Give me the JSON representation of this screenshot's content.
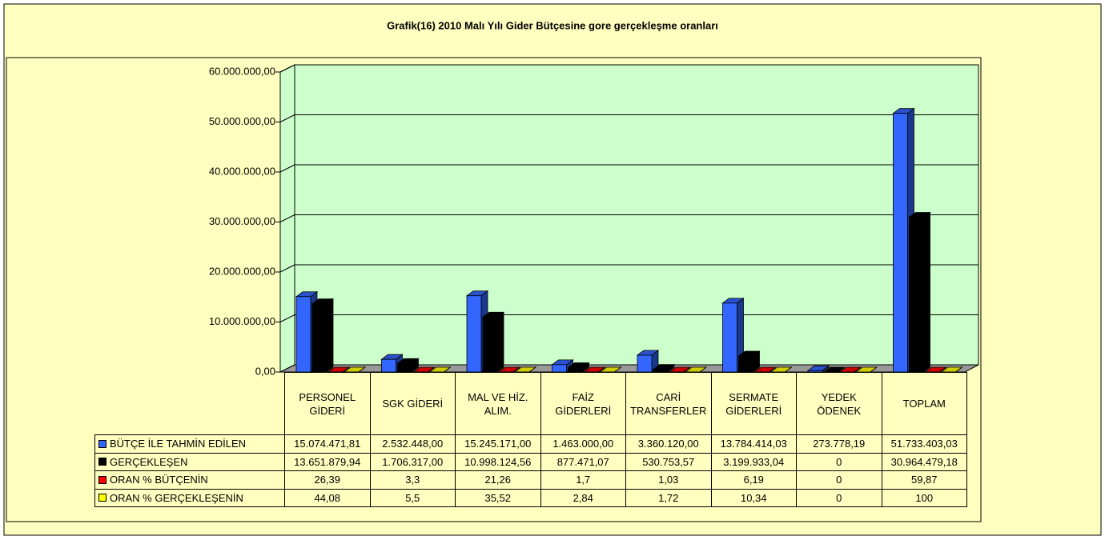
{
  "chart_data": {
    "type": "bar3d",
    "title": "Grafik(16) 2010 Malı Yılı Gider Bütçesine gore gerçekleşme oranları",
    "categories": [
      "PERSONEL GİDERİ",
      "SGK GİDERİ",
      "MAL VE HİZ. ALIM.",
      "FAİZ GİDERLERİ",
      "CARİ TRANSFERLER",
      "SERMATE GİDERLERİ",
      "YEDEK ÖDENEK",
      "TOPLAM"
    ],
    "series": [
      {
        "name": "BÜTÇE İLE TAHMİN EDİLEN",
        "color": "#3366ff",
        "values": [
          15074471.81,
          2532448.0,
          15245171.0,
          1463000.0,
          3360120.0,
          13784414.03,
          273778.19,
          51733403.03
        ],
        "value_labels": [
          "15.074.471,81",
          "2.532.448,00",
          "15.245.171,00",
          "1.463.000,00",
          "3.360.120,00",
          "13.784.414,03",
          "273.778,19",
          "51.733.403,03"
        ]
      },
      {
        "name": "GERÇEKLEŞEN",
        "color": "#000000",
        "values": [
          13651879.94,
          1706317.0,
          10998124.56,
          877471.07,
          530753.57,
          3199933.04,
          0,
          30964479.18
        ],
        "value_labels": [
          "13.651.879,94",
          "1.706.317,00",
          "10.998.124,56",
          "877.471,07",
          "530.753,57",
          "3.199.933,04",
          "0",
          "30.964.479,18"
        ]
      },
      {
        "name": "ORAN % BÜTÇENİN",
        "color": "#ff0000",
        "values": [
          26.39,
          3.3,
          21.26,
          1.7,
          1.03,
          6.19,
          0,
          59.87
        ],
        "value_labels": [
          "26,39",
          "3,3",
          "21,26",
          "1,7",
          "1,03",
          "6,19",
          "0",
          "59,87"
        ]
      },
      {
        "name": "ORAN % GERÇEKLEŞENİN",
        "color": "#ffff00",
        "values": [
          44.08,
          5.5,
          35.52,
          2.84,
          1.72,
          10.34,
          0,
          100
        ],
        "value_labels": [
          "44,08",
          "5,5",
          "35,52",
          "2,84",
          "1,72",
          "10,34",
          "0",
          "100"
        ]
      }
    ],
    "ylim": [
      0,
      60000000
    ],
    "yticks": [
      {
        "value": 0,
        "label": "0,00"
      },
      {
        "value": 10000000,
        "label": "10.000.000,00"
      },
      {
        "value": 20000000,
        "label": "20.000.000,00"
      },
      {
        "value": 30000000,
        "label": "30.000.000,00"
      },
      {
        "value": 40000000,
        "label": "40.000.000,00"
      },
      {
        "value": 50000000,
        "label": "50.000.000,00"
      },
      {
        "value": 60000000,
        "label": "60.000.000,00"
      }
    ],
    "grid": true
  }
}
